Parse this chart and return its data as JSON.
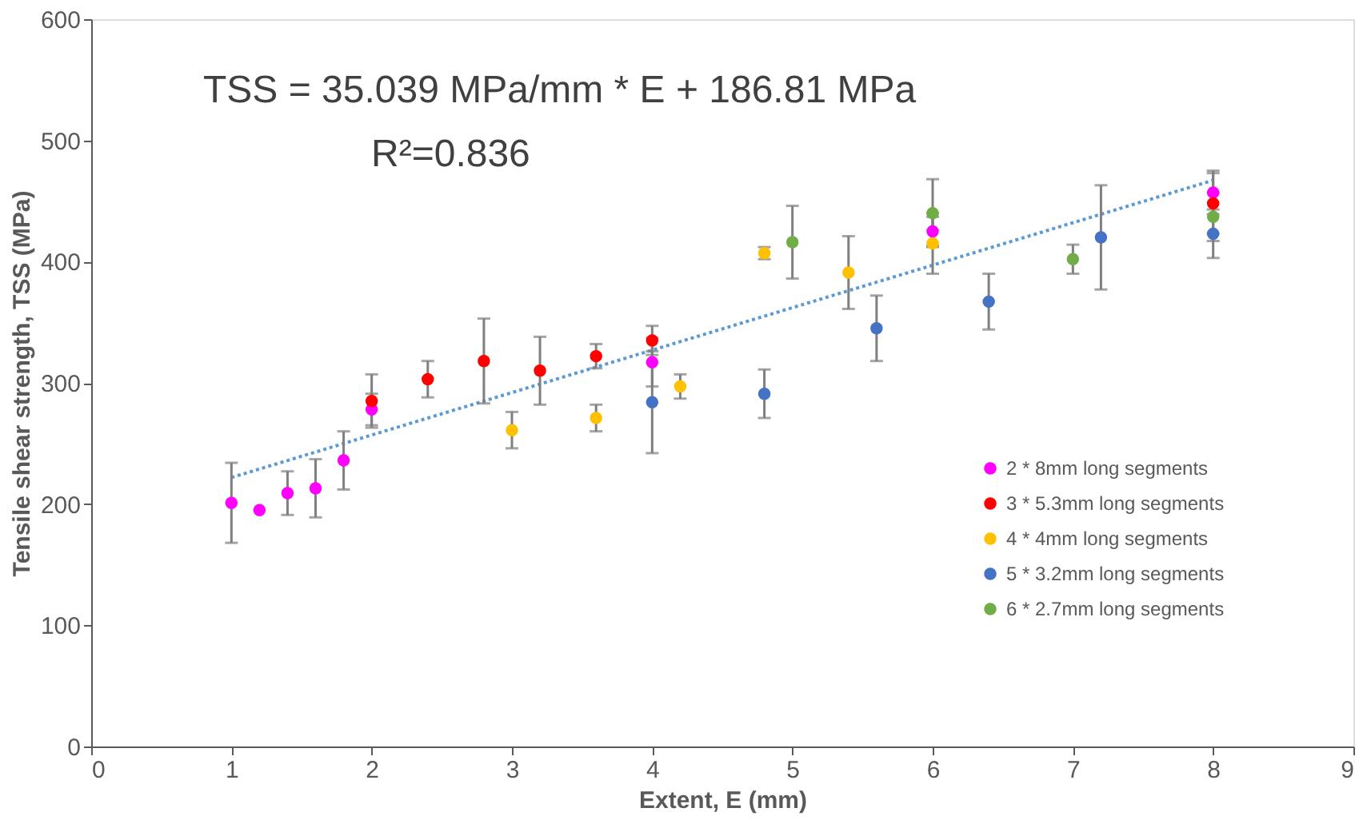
{
  "chart_data": {
    "type": "scatter",
    "xlabel": "Extent, E (mm)",
    "ylabel": "Tensile shear strength, TSS (MPa)",
    "annotations": [
      "TSS = 35.039 MPa/mm * E + 186.81 MPa",
      "R²=0.836"
    ],
    "xlim": [
      0,
      9
    ],
    "xticks": [
      0,
      1,
      2,
      3,
      4,
      5,
      6,
      7,
      8,
      9
    ],
    "ylim": [
      0,
      600
    ],
    "yticks": [
      0,
      100,
      200,
      300,
      400,
      500,
      600
    ],
    "grid": false,
    "legend": "bottom right",
    "marker": "circle",
    "series": [
      {
        "name": "2 * 8mm long segments",
        "color": "#ff00ff",
        "x": [
          1,
          1.2,
          1.4,
          1.6,
          1.8,
          2,
          4,
          6,
          8
        ],
        "values": [
          201,
          195,
          209,
          213,
          236,
          278,
          317,
          425,
          457
        ],
        "errors": [
          33,
          null,
          18,
          24,
          24,
          13,
          20,
          12,
          18
        ]
      },
      {
        "name": "3 * 5.3mm long segments",
        "color": "#ff0000",
        "x": [
          2,
          2.4,
          2.8,
          3.2,
          3.6,
          4,
          8
        ],
        "values": [
          285,
          303,
          318,
          310,
          322,
          335,
          448
        ],
        "errors": [
          22,
          15,
          35,
          28,
          10,
          12,
          25
        ]
      },
      {
        "name": "4 * 4mm long segments",
        "color": "#ffc000",
        "x": [
          3,
          3.6,
          4.2,
          4.8,
          5.4,
          6
        ],
        "values": [
          261,
          271,
          297,
          407,
          391,
          415
        ],
        "errors": [
          15,
          11,
          10,
          5,
          30,
          25
        ]
      },
      {
        "name": "5 * 3.2mm long segments",
        "color": "#4472c4",
        "x": [
          4,
          4.8,
          5.6,
          6.4,
          7.2,
          8
        ],
        "values": [
          284,
          291,
          345,
          367,
          420,
          423
        ],
        "errors": [
          42,
          20,
          27,
          23,
          43,
          20
        ]
      },
      {
        "name": "6 * 2.7mm long segments",
        "color": "#70ad47",
        "x": [
          5,
          6,
          7,
          8
        ],
        "values": [
          416,
          440,
          402,
          437
        ],
        "errors": [
          30,
          28,
          12,
          20
        ]
      },
      {
        "type": "line",
        "color": "#5b9bd5",
        "line_style": "dotted",
        "marker": "none",
        "x": [
          1,
          8
        ],
        "values": [
          221.9,
          467.1
        ]
      }
    ]
  }
}
